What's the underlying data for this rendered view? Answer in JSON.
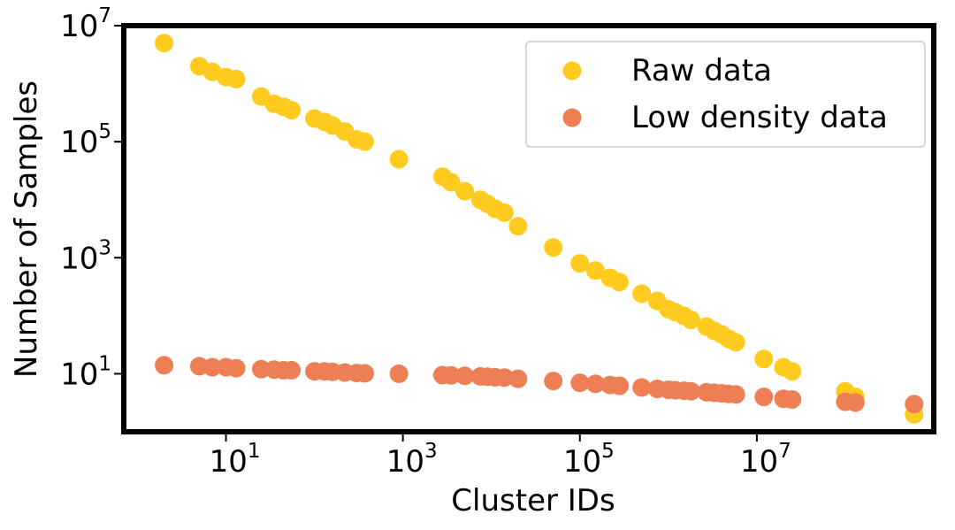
{
  "chart_data": {
    "type": "scatter",
    "title": "",
    "xlabel": "Cluster IDs",
    "ylabel": "Number of Samples",
    "xscale": "log",
    "yscale": "log",
    "xlim": [
      0.7,
      1000000000
    ],
    "ylim": [
      1,
      10000000
    ],
    "grid": false,
    "legend_position": "top-right",
    "xticks": [
      {
        "value": 10,
        "base": "10",
        "exp": "1"
      },
      {
        "value": 1000,
        "base": "10",
        "exp": "3"
      },
      {
        "value": 100000,
        "base": "10",
        "exp": "5"
      },
      {
        "value": 10000000,
        "base": "10",
        "exp": "7"
      }
    ],
    "yticks": [
      {
        "value": 10,
        "base": "10",
        "exp": "1"
      },
      {
        "value": 1000,
        "base": "10",
        "exp": "3"
      },
      {
        "value": 100000,
        "base": "10",
        "exp": "5"
      },
      {
        "value": 10000000,
        "base": "10",
        "exp": "7"
      }
    ],
    "series": [
      {
        "name": "Raw data",
        "color": "#FFCB1F",
        "x": [
          2,
          5,
          7,
          10,
          13,
          25,
          35,
          45,
          55,
          100,
          130,
          160,
          220,
          300,
          370,
          900,
          2800,
          3500,
          5000,
          7500,
          9000,
          11000,
          14000,
          20000,
          50000,
          100000,
          150000,
          220000,
          280000,
          500000,
          750000,
          1000000,
          1200000,
          1500000,
          1800000,
          2700000,
          3300000,
          4000000,
          4800000,
          5800000,
          12000000,
          20000000,
          25000000,
          100000000,
          130000000,
          600000000
        ],
        "y": [
          5000000,
          2000000,
          1600000,
          1300000,
          1200000,
          600000,
          450000,
          400000,
          350000,
          250000,
          220000,
          190000,
          150000,
          110000,
          100000,
          50000,
          25000,
          20000,
          14000,
          10000,
          8500,
          7000,
          6000,
          3500,
          1500,
          800,
          600,
          450,
          380,
          240,
          180,
          130,
          115,
          100,
          85,
          65,
          55,
          48,
          40,
          35,
          18,
          13,
          11,
          5,
          4,
          2
        ]
      },
      {
        "name": "Low density data",
        "color": "#EE7F55",
        "x": [
          2,
          5,
          7,
          10,
          13,
          25,
          35,
          45,
          55,
          100,
          130,
          160,
          220,
          300,
          370,
          900,
          2800,
          3500,
          5000,
          7500,
          9000,
          11000,
          14000,
          20000,
          50000,
          100000,
          150000,
          220000,
          280000,
          500000,
          750000,
          1000000,
          1200000,
          1500000,
          1800000,
          2700000,
          3300000,
          4000000,
          4800000,
          5800000,
          12000000,
          20000000,
          25000000,
          100000000,
          130000000,
          600000000
        ],
        "y": [
          14,
          13.5,
          13,
          13,
          12.5,
          12,
          11.8,
          11.5,
          11.5,
          11,
          11,
          10.8,
          10.5,
          10.3,
          10.2,
          10,
          9.5,
          9.4,
          9.2,
          9,
          8.9,
          8.7,
          8.6,
          8.2,
          7.5,
          7,
          6.7,
          6.4,
          6.2,
          5.8,
          5.5,
          5.3,
          5.2,
          5.1,
          5,
          4.8,
          4.7,
          4.6,
          4.5,
          4.4,
          4,
          3.7,
          3.6,
          3.3,
          3.2,
          3
        ]
      }
    ]
  }
}
